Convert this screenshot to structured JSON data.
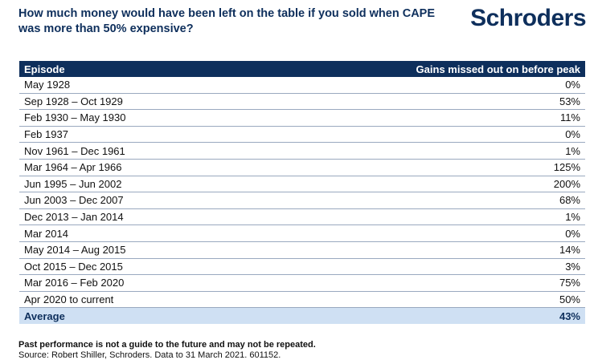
{
  "header": {
    "title": "How much money would have been left on the table if you sold when CAPE was more than 50% expensive?",
    "logo_text": "Schroders"
  },
  "table": {
    "columns": [
      "Episode",
      "Gains missed out on before peak"
    ],
    "rows": [
      [
        "May 1928",
        "0%"
      ],
      [
        "Sep 1928 – Oct 1929",
        "53%"
      ],
      [
        "Feb 1930 – May 1930",
        "11%"
      ],
      [
        "Feb 1937",
        "0%"
      ],
      [
        "Nov 1961 – Dec 1961",
        "1%"
      ],
      [
        "Mar 1964 – Apr 1966",
        "125%"
      ],
      [
        "Jun 1995 – Jun 2002",
        "200%"
      ],
      [
        "Jun 2003 – Dec 2007",
        "68%"
      ],
      [
        "Dec 2013 – Jan 2014",
        "1%"
      ],
      [
        "Mar 2014",
        "0%"
      ],
      [
        "May 2014 – Aug 2015",
        "14%"
      ],
      [
        "Oct 2015 – Dec 2015",
        "3%"
      ],
      [
        "Mar 2016 – Feb 2020",
        "75%"
      ],
      [
        "Apr 2020 to current",
        "50%"
      ]
    ],
    "average": [
      "Average",
      "43%"
    ]
  },
  "footer": {
    "disclaimer": "Past performance is not a guide to the future and may not be repeated.",
    "source": "Source: Robert Shiller, Schroders. Data to 31 March 2021. 601152."
  },
  "colors": {
    "brand_navy": "#0e2f5c",
    "average_row": "#cfe0f3"
  }
}
